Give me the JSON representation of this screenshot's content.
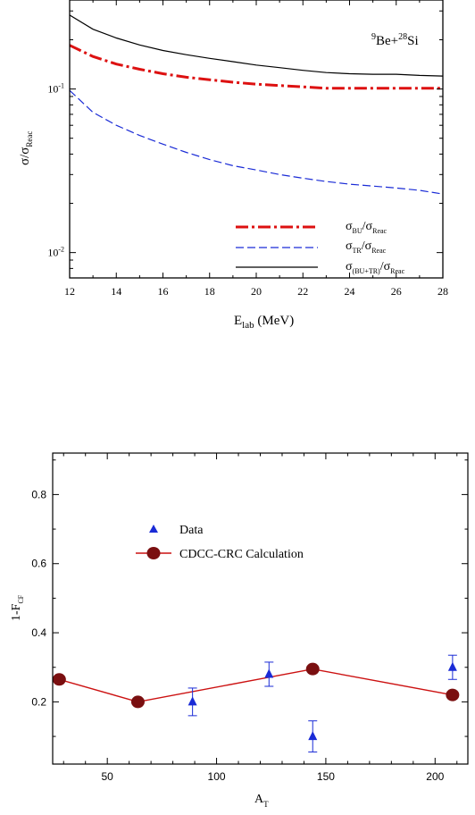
{
  "chart_data": [
    {
      "type": "line",
      "log_y": true,
      "x_unit": "MeV",
      "xlim": [
        12,
        28
      ],
      "ylim": [
        0.007,
        0.35
      ],
      "x_ticks": [
        "12",
        "14",
        "16",
        "18",
        "20",
        "22",
        "24",
        "26",
        "28"
      ],
      "y_ticks": [
        {
          "value": 0.1,
          "base": "10",
          "exp": "-1"
        },
        {
          "value": 0.01,
          "base": "10",
          "exp": "-2"
        }
      ],
      "xlabel": {
        "main": "E",
        "sub": "lab",
        "rest": " (MeV)"
      },
      "ylabel": {
        "main": "σ/σ",
        "sub": "Reac"
      },
      "annotation": {
        "sup1": "9",
        "t1": "Be+",
        "sup2": "28",
        "t2": "Si"
      },
      "series": [
        {
          "legend": {
            "a": "σ",
            "a_sub": "BU",
            "b": "/σ",
            "b_sub": "Reac"
          },
          "color": "#dd1111",
          "style": "dash-dot",
          "x": [
            12,
            13,
            14,
            15,
            16,
            17,
            18,
            19,
            20,
            21,
            22,
            23,
            24,
            25,
            26,
            27,
            28
          ],
          "y": [
            0.185,
            0.158,
            0.142,
            0.132,
            0.124,
            0.118,
            0.114,
            0.11,
            0.107,
            0.105,
            0.103,
            0.101,
            0.101,
            0.101,
            0.101,
            0.101,
            0.101
          ]
        },
        {
          "legend": {
            "a": "σ",
            "a_sub": "TR",
            "b": "/σ",
            "b_sub": "Reac"
          },
          "color": "#1a2bd6",
          "style": "dashed",
          "x": [
            12,
            13,
            14,
            15,
            16,
            17,
            18,
            19,
            20,
            21,
            22,
            23,
            24,
            25,
            26,
            27,
            28
          ],
          "y": [
            0.098,
            0.072,
            0.06,
            0.052,
            0.046,
            0.041,
            0.037,
            0.034,
            0.032,
            0.03,
            0.0285,
            0.0272,
            0.0262,
            0.0255,
            0.0248,
            0.024,
            0.0228
          ]
        },
        {
          "legend": {
            "a": "σ",
            "a_sub": "(BU+TR)",
            "b": "/σ",
            "b_sub": "Reac"
          },
          "color": "#000000",
          "style": "solid",
          "x": [
            12,
            13,
            14,
            15,
            16,
            17,
            18,
            19,
            20,
            21,
            22,
            23,
            24,
            25,
            26,
            27,
            28
          ],
          "y": [
            0.283,
            0.232,
            0.205,
            0.186,
            0.172,
            0.162,
            0.154,
            0.147,
            0.14,
            0.135,
            0.13,
            0.126,
            0.124,
            0.123,
            0.123,
            0.121,
            0.12
          ]
        }
      ]
    },
    {
      "type": "scatter",
      "xlim": [
        25,
        215
      ],
      "ylim": [
        0.02,
        0.92
      ],
      "x_ticks": [
        "50",
        "100",
        "150",
        "200"
      ],
      "y_ticks": [
        "0.2",
        "0.4",
        "0.6",
        "0.8"
      ],
      "xlabel": {
        "main": "A",
        "sub": "T"
      },
      "ylabel": {
        "main": "1-F",
        "sub": "CF"
      },
      "series": [
        {
          "name": "Data",
          "color": "#1a2bd6",
          "marker": "triangle",
          "points": [
            {
              "x": 89,
              "y": 0.2,
              "err": 0.04
            },
            {
              "x": 124,
              "y": 0.28,
              "err": 0.035
            },
            {
              "x": 144,
              "y": 0.1,
              "err": 0.045
            },
            {
              "x": 208,
              "y": 0.3,
              "err": 0.035
            }
          ]
        },
        {
          "name": "CDCC-CRC Calculation",
          "color": "#cc1111",
          "marker_color": "#7a0f10",
          "marker": "circle",
          "points": [
            {
              "x": 28,
              "y": 0.265
            },
            {
              "x": 64,
              "y": 0.2
            },
            {
              "x": 144,
              "y": 0.295
            },
            {
              "x": 208,
              "y": 0.22
            }
          ]
        }
      ]
    }
  ]
}
